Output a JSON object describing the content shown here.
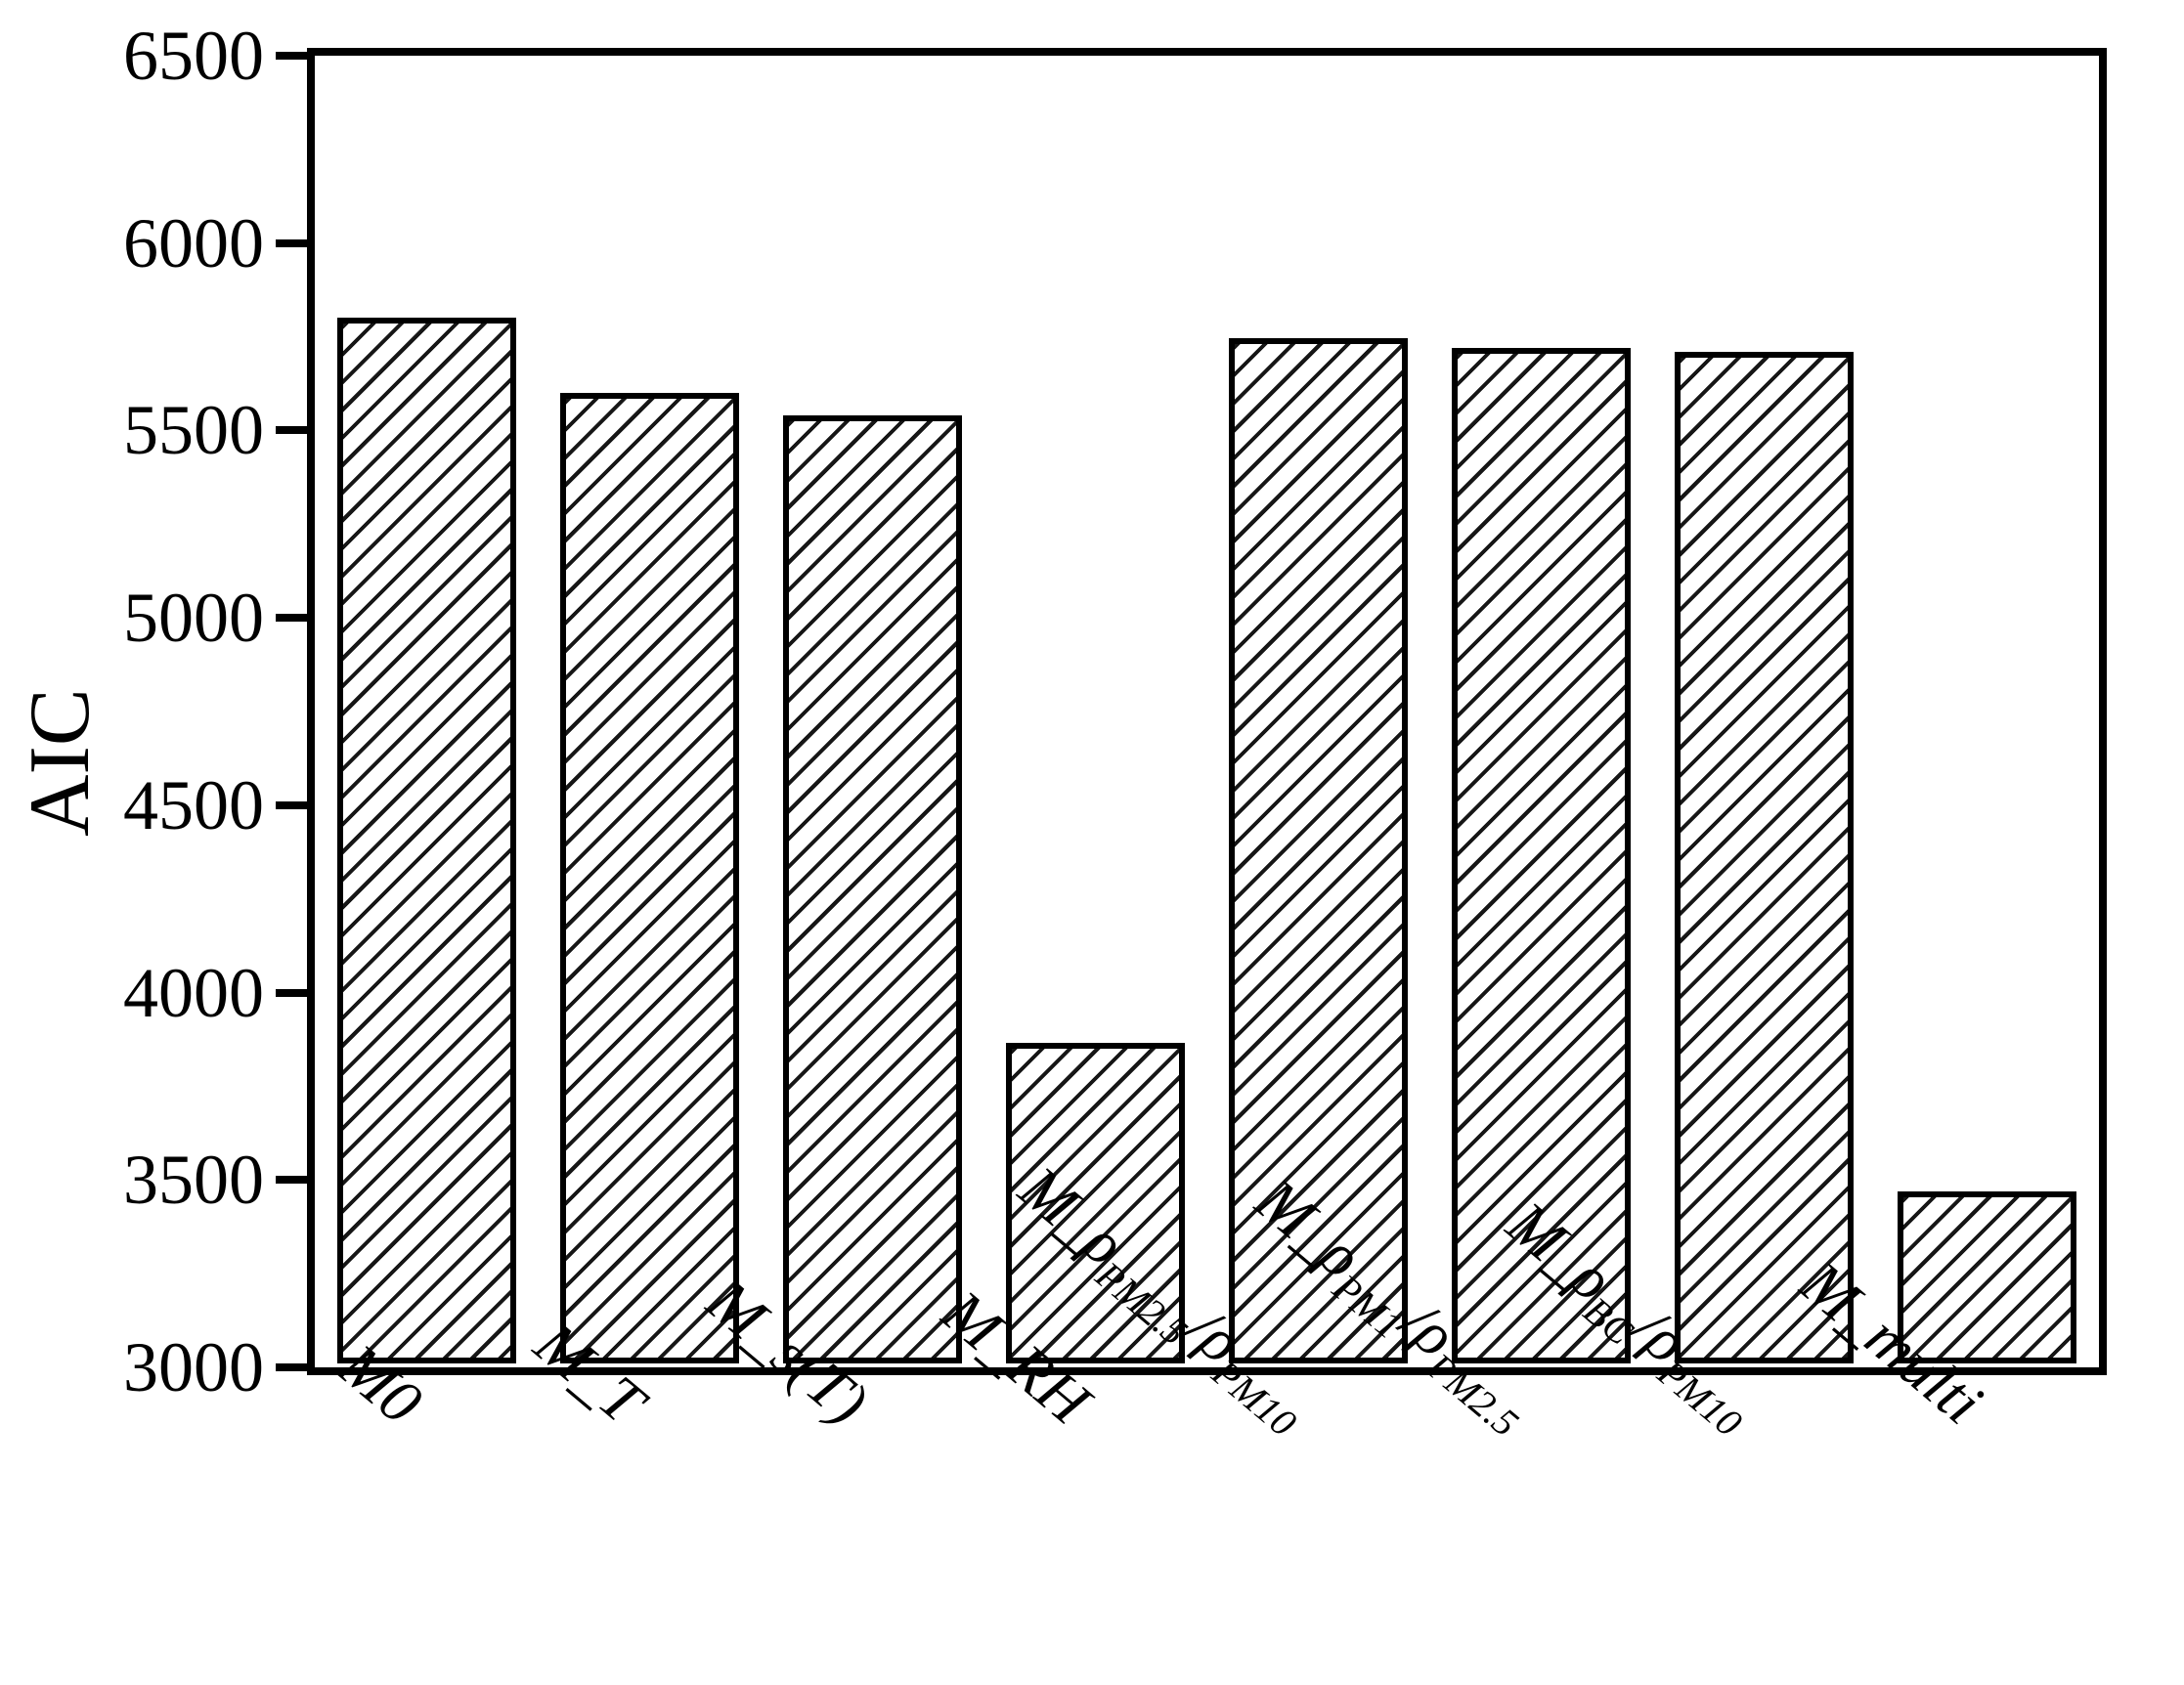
{
  "figure": {
    "background_color": "#ffffff",
    "axis_color": "#000000"
  },
  "chart_data": {
    "type": "bar",
    "title": "",
    "xlabel": "",
    "ylabel": "AIC",
    "ylim": [
      3000,
      6500
    ],
    "yticks": [
      3000,
      3500,
      4000,
      4500,
      5000,
      5500,
      6000,
      6500
    ],
    "grid": false,
    "legend_position": "none",
    "bar_style": {
      "fill": "#ffffff",
      "edge_color": "#000000",
      "hatch": "forward-diagonal"
    },
    "label_rotation_deg": 40,
    "bar_width_fraction": 0.8,
    "categories": [
      "M0",
      "M_T",
      "M_s(T)",
      "M_RH",
      "M_ρ_PM2.5/ρ_PM10",
      "M_ρ_PM1/ρ_PM2.5",
      "M_ρ_BC/ρ_PM10",
      "M_multi"
    ],
    "category_segments": [
      [
        {
          "text": "M0"
        }
      ],
      [
        {
          "text": "M_T"
        }
      ],
      [
        {
          "text": "M_s(T)"
        }
      ],
      [
        {
          "text": "M_RH"
        }
      ],
      [
        {
          "text": "M_ρ"
        },
        {
          "text": "PM2.5",
          "sub": true
        },
        {
          "text": "/ρ"
        },
        {
          "text": "PM10",
          "sub": true
        }
      ],
      [
        {
          "text": "M_ρ"
        },
        {
          "text": "PM1",
          "sub": true
        },
        {
          "text": "/ρ"
        },
        {
          "text": "PM2.5",
          "sub": true
        }
      ],
      [
        {
          "text": "M_ρ"
        },
        {
          "text": "BC",
          "sub": true
        },
        {
          "text": "/ρ"
        },
        {
          "text": "PM10",
          "sub": true
        }
      ],
      [
        {
          "text": "M_multi"
        }
      ]
    ],
    "values": [
      5800,
      5600,
      5540,
      3865,
      5745,
      5720,
      5710,
      3470
    ]
  }
}
